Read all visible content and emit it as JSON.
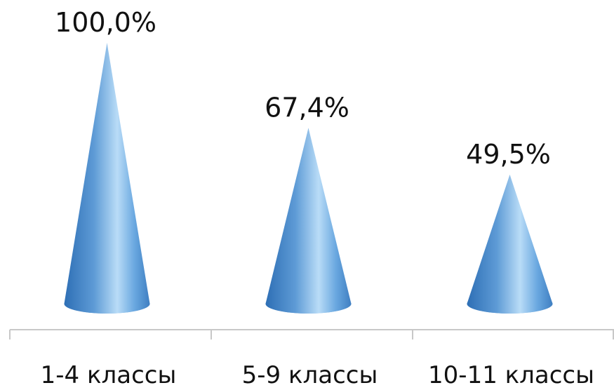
{
  "chart_data": {
    "type": "bar",
    "style": "3d-cone",
    "categories": [
      "1-4 классы",
      "5-9 классы",
      "10-11 классы"
    ],
    "values": [
      100.0,
      67.4,
      49.5
    ],
    "data_labels": [
      "100,0%",
      "67,4%",
      "49,5%"
    ],
    "ylim": [
      0,
      100
    ],
    "grid": false,
    "legend": "none",
    "colors": {
      "cone_light": "#b9dcf7",
      "cone_mid": "#6aa8e0",
      "cone_dark": "#2e6fb5",
      "axis": "#c8c8c8"
    }
  }
}
